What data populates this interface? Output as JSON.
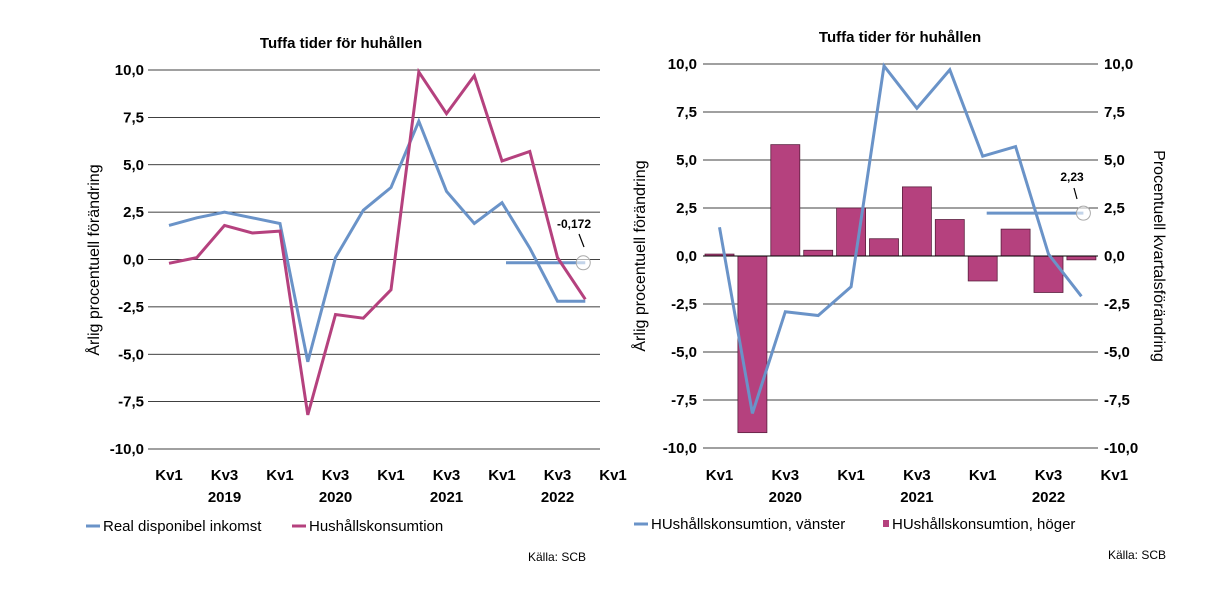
{
  "chart_data": [
    {
      "type": "line",
      "title": "Tuffa tider för huhållen",
      "ylabel": "Årlig procentuell förändring",
      "ylim": [
        -10,
        10
      ],
      "yticks": [
        "10,0",
        "7,5",
        "5,0",
        "2,5",
        "0,0",
        "-2,5",
        "-5,0",
        "-7,5",
        "-10,0"
      ],
      "categories": [
        "2019Q1",
        "2019Q2",
        "2019Q3",
        "2019Q4",
        "2020Q1",
        "2020Q2",
        "2020Q3",
        "2020Q4",
        "2021Q1",
        "2021Q2",
        "2021Q3",
        "2021Q4",
        "2022Q1",
        "2022Q2",
        "2022Q3",
        "2022Q4"
      ],
      "xticks": [
        {
          "label": "Kv1",
          "index": 0
        },
        {
          "label": "Kv3",
          "index": 2
        },
        {
          "label": "Kv1",
          "index": 4
        },
        {
          "label": "Kv3",
          "index": 6
        },
        {
          "label": "Kv1",
          "index": 8
        },
        {
          "label": "Kv3",
          "index": 10
        },
        {
          "label": "Kv1",
          "index": 12
        },
        {
          "label": "Kv3",
          "index": 14
        },
        {
          "label": "Kv1",
          "index": 16
        }
      ],
      "years": [
        {
          "label": "2019",
          "index": 2
        },
        {
          "label": "2020",
          "index": 6
        },
        {
          "label": "2021",
          "index": 10
        },
        {
          "label": "2022",
          "index": 14
        }
      ],
      "series": [
        {
          "name": "Real disponibel inkomst",
          "color": "#6a93c8",
          "values": [
            1.8,
            2.2,
            2.5,
            2.2,
            1.9,
            -5.4,
            0.1,
            2.6,
            3.8,
            7.3,
            3.6,
            1.9,
            3.0,
            0.6,
            -2.2,
            -2.2
          ]
        },
        {
          "name": "Hushållskonsumtion",
          "color": "#b5417e",
          "values": [
            -0.2,
            0.1,
            1.8,
            1.4,
            1.5,
            -8.2,
            -2.9,
            -3.1,
            -1.6,
            9.9,
            7.7,
            9.7,
            5.2,
            5.7,
            0.1,
            -2.1
          ]
        }
      ],
      "forecast_line": {
        "value": -0.172,
        "from_index": 12,
        "to_index": 15,
        "color": "#6a93c8"
      },
      "annotation": "-0,172",
      "source": "Källa: SCB"
    },
    {
      "type": "bar",
      "title": "Tuffa tider för huhållen",
      "ylabel_left": "Årlig procentuell förändring",
      "ylabel_right": "Procentuell kvartalsförändring",
      "ylim": [
        -10,
        10
      ],
      "yticks": [
        "10,0",
        "7,5",
        "5,0",
        "2,5",
        "0,0",
        "-2,5",
        "-5,0",
        "-7,5",
        "-10,0"
      ],
      "categories": [
        "2020Q1",
        "2020Q2",
        "2020Q3",
        "2020Q4",
        "2021Q1",
        "2021Q2",
        "2021Q3",
        "2021Q4",
        "2022Q1",
        "2022Q2",
        "2022Q3",
        "2022Q4"
      ],
      "xticks": [
        {
          "label": "Kv1",
          "index": 0
        },
        {
          "label": "Kv3",
          "index": 2
        },
        {
          "label": "Kv1",
          "index": 4
        },
        {
          "label": "Kv3",
          "index": 6
        },
        {
          "label": "Kv1",
          "index": 8
        },
        {
          "label": "Kv3",
          "index": 10
        },
        {
          "label": "Kv1",
          "index": 12
        }
      ],
      "years": [
        {
          "label": "2020",
          "index": 2
        },
        {
          "label": "2021",
          "index": 6
        },
        {
          "label": "2022",
          "index": 10
        }
      ],
      "series": [
        {
          "name": "HUshållskonsumtion, vänster",
          "type": "line",
          "color": "#6a93c8",
          "values": [
            1.5,
            -8.2,
            -2.9,
            -3.1,
            -1.6,
            9.9,
            7.7,
            9.7,
            5.2,
            5.7,
            0.1,
            -2.1
          ]
        },
        {
          "name": "HUshållskonsumtion, höger",
          "type": "bar",
          "color": "#b5417e",
          "values": [
            0.1,
            -9.2,
            5.8,
            0.3,
            2.5,
            0.9,
            3.6,
            1.9,
            -1.3,
            1.4,
            -1.9,
            -0.2
          ]
        }
      ],
      "forecast_line": {
        "value": 2.23,
        "from_index": 8,
        "to_index": 11,
        "color": "#6a93c8"
      },
      "annotation": "2,23",
      "source": "Källa: SCB"
    }
  ]
}
